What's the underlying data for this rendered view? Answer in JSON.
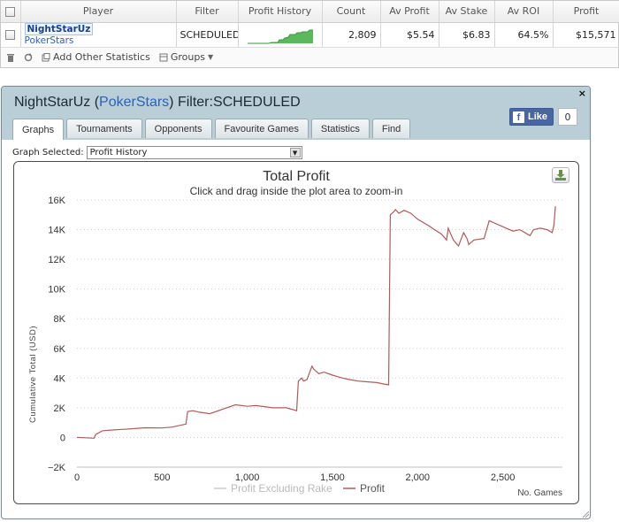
{
  "table": {
    "headers": [
      "Player",
      "Filter",
      "Profit History",
      "Count",
      "Av Profit",
      "Av Stake",
      "Av ROI",
      "Profit"
    ],
    "row": {
      "player_name": "NightStarUz",
      "player_site": "PokerStars",
      "filter": "SCHEDULED",
      "count": "2,809",
      "av_profit": "$5.54",
      "av_stake": "$6.83",
      "av_roi": "64.5%",
      "profit": "$15,571"
    }
  },
  "toolbar": {
    "add_stats_label": "Add Other Statistics",
    "groups_label": "Groups"
  },
  "dialog": {
    "title_name": "NightStarUz (",
    "title_site": "PokerStars",
    "title_filter": ") Filter:SCHEDULED",
    "close_label": "×",
    "like_label": "Like",
    "like_count": "0",
    "tabs": [
      "Graphs",
      "Tournaments",
      "Opponents",
      "Favourite Games",
      "Statistics",
      "Find"
    ],
    "graph_selected_label": "Graph Selected:",
    "graph_selected_value": "Profit History"
  },
  "colors": {
    "profit_line": "#b05a5a",
    "rake_line": "#cccccc",
    "header_bg": "#b9ced7",
    "sparkline": "#5cb85c"
  },
  "chart_data": {
    "type": "line",
    "title": "Total Profit",
    "subtitle": "Click and drag inside the plot area to zoom-in",
    "xlabel": "No. Games",
    "ylabel": "Cumulative Total (USD)",
    "xlim": [
      0,
      2850
    ],
    "ylim": [
      -2000,
      16000
    ],
    "x_ticks": [
      0,
      500,
      1000,
      1500,
      2000,
      2500
    ],
    "x_tick_labels": [
      "0",
      "500",
      "1,000",
      "1,500",
      "2,000",
      "2,500"
    ],
    "y_ticks": [
      -2000,
      0,
      2000,
      4000,
      6000,
      8000,
      10000,
      12000,
      14000,
      16000
    ],
    "y_tick_labels": [
      "−2K",
      "0",
      "2K",
      "4K",
      "6K",
      "8K",
      "10K",
      "12K",
      "14K",
      "16K"
    ],
    "grid": true,
    "legend_position": "bottom-center",
    "series": [
      {
        "name": "Profit Excluding Rake",
        "x": [],
        "values": []
      },
      {
        "name": "Profit",
        "x": [
          0,
          50,
          100,
          110,
          150,
          200,
          280,
          400,
          500,
          560,
          640,
          650,
          680,
          720,
          780,
          880,
          930,
          1000,
          1050,
          1150,
          1230,
          1290,
          1300,
          1320,
          1330,
          1350,
          1380,
          1390,
          1420,
          1450,
          1500,
          1560,
          1600,
          1650,
          1700,
          1760,
          1800,
          1830,
          1840,
          1860,
          1870,
          1890,
          1920,
          1960,
          2000,
          2060,
          2100,
          2140,
          2170,
          2180,
          2210,
          2240,
          2270,
          2290,
          2300,
          2330,
          2390,
          2420,
          2480,
          2520,
          2560,
          2600,
          2660,
          2680,
          2720,
          2760,
          2790,
          2800,
          2809
        ],
        "values": [
          0,
          -20,
          -50,
          200,
          450,
          500,
          550,
          650,
          640,
          700,
          900,
          1750,
          1800,
          1700,
          1600,
          2000,
          2200,
          2100,
          2150,
          2000,
          2000,
          1800,
          3800,
          4000,
          3800,
          3900,
          4800,
          4600,
          4300,
          4400,
          4200,
          4000,
          3900,
          3800,
          3750,
          3700,
          3600,
          3550,
          15000,
          15200,
          15350,
          15100,
          15300,
          15100,
          14700,
          14300,
          14000,
          13700,
          13300,
          14100,
          13300,
          12900,
          13800,
          13400,
          13000,
          13300,
          13400,
          14600,
          14300,
          14100,
          13900,
          14000,
          13600,
          14000,
          14100,
          14000,
          13800,
          14300,
          15571
        ]
      }
    ]
  }
}
